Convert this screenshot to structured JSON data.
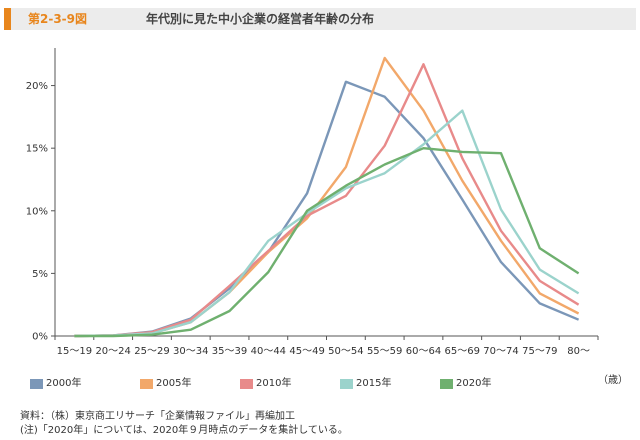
{
  "header": {
    "figure_number": "第2-3-9図",
    "title": "年代別に見た中小企業の経営者年齢の分布",
    "accent_color": "#e8861d"
  },
  "unit_label": "（歳）",
  "notes": {
    "source": "資料：（株）東京商工リサーチ「企業情報ファイル」再編加工",
    "note": "(注)「2020年」については、2020年９月時点のデータを集計している。"
  },
  "chart_data": {
    "type": "line",
    "title": "",
    "xlabel": "（歳）",
    "ylabel": "",
    "categories": [
      "15～19",
      "20～24",
      "25～29",
      "30～34",
      "35～39",
      "40～44",
      "45～49",
      "50～54",
      "55～59",
      "60～64",
      "65～69",
      "70～74",
      "75～79",
      "80～"
    ],
    "yticks": [
      "0%",
      "5%",
      "10%",
      "15%",
      "20%"
    ],
    "ylim": [
      0,
      23
    ],
    "grid": false,
    "legend": "bottom",
    "series": [
      {
        "name": "2000年",
        "color": "#7b97b8",
        "values": [
          0.0,
          0.05,
          0.35,
          1.4,
          3.8,
          6.7,
          11.4,
          20.3,
          19.1,
          15.8,
          10.9,
          5.9,
          2.6,
          1.3
        ]
      },
      {
        "name": "2005年",
        "color": "#f2a86a",
        "values": [
          0.0,
          0.05,
          0.2,
          1.1,
          3.5,
          6.7,
          9.4,
          13.5,
          22.2,
          18.0,
          12.4,
          7.6,
          3.4,
          1.8
        ]
      },
      {
        "name": "2010年",
        "color": "#e88a8a",
        "values": [
          0.0,
          0.05,
          0.3,
          1.3,
          4.0,
          6.8,
          9.6,
          11.2,
          15.2,
          21.7,
          14.2,
          8.4,
          4.4,
          2.5
        ]
      },
      {
        "name": "2015年",
        "color": "#9bd3cc",
        "values": [
          0.0,
          0.05,
          0.2,
          1.1,
          3.5,
          7.6,
          9.8,
          11.8,
          13.0,
          15.3,
          18.0,
          10.1,
          5.3,
          3.4
        ]
      },
      {
        "name": "2020年",
        "color": "#6fb06f",
        "values": [
          0.0,
          0.0,
          0.1,
          0.5,
          2.0,
          5.1,
          10.0,
          12.0,
          13.7,
          15.0,
          14.7,
          14.6,
          7.0,
          5.0
        ]
      }
    ]
  }
}
